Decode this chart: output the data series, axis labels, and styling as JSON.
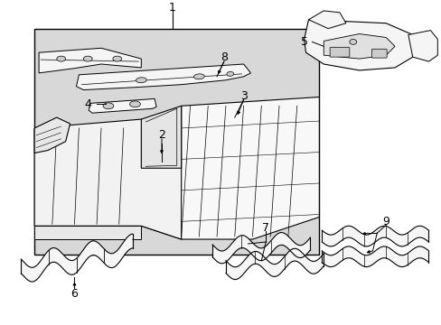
{
  "background_color": "#ffffff",
  "figure_width": 4.89,
  "figure_height": 3.6,
  "dpi": 100,
  "box_fill": "#dcdcdc",
  "box_edge": "#000000",
  "line_color": "#000000",
  "part_fill": "#ffffff",
  "part_fill2": "#f0f0f0"
}
